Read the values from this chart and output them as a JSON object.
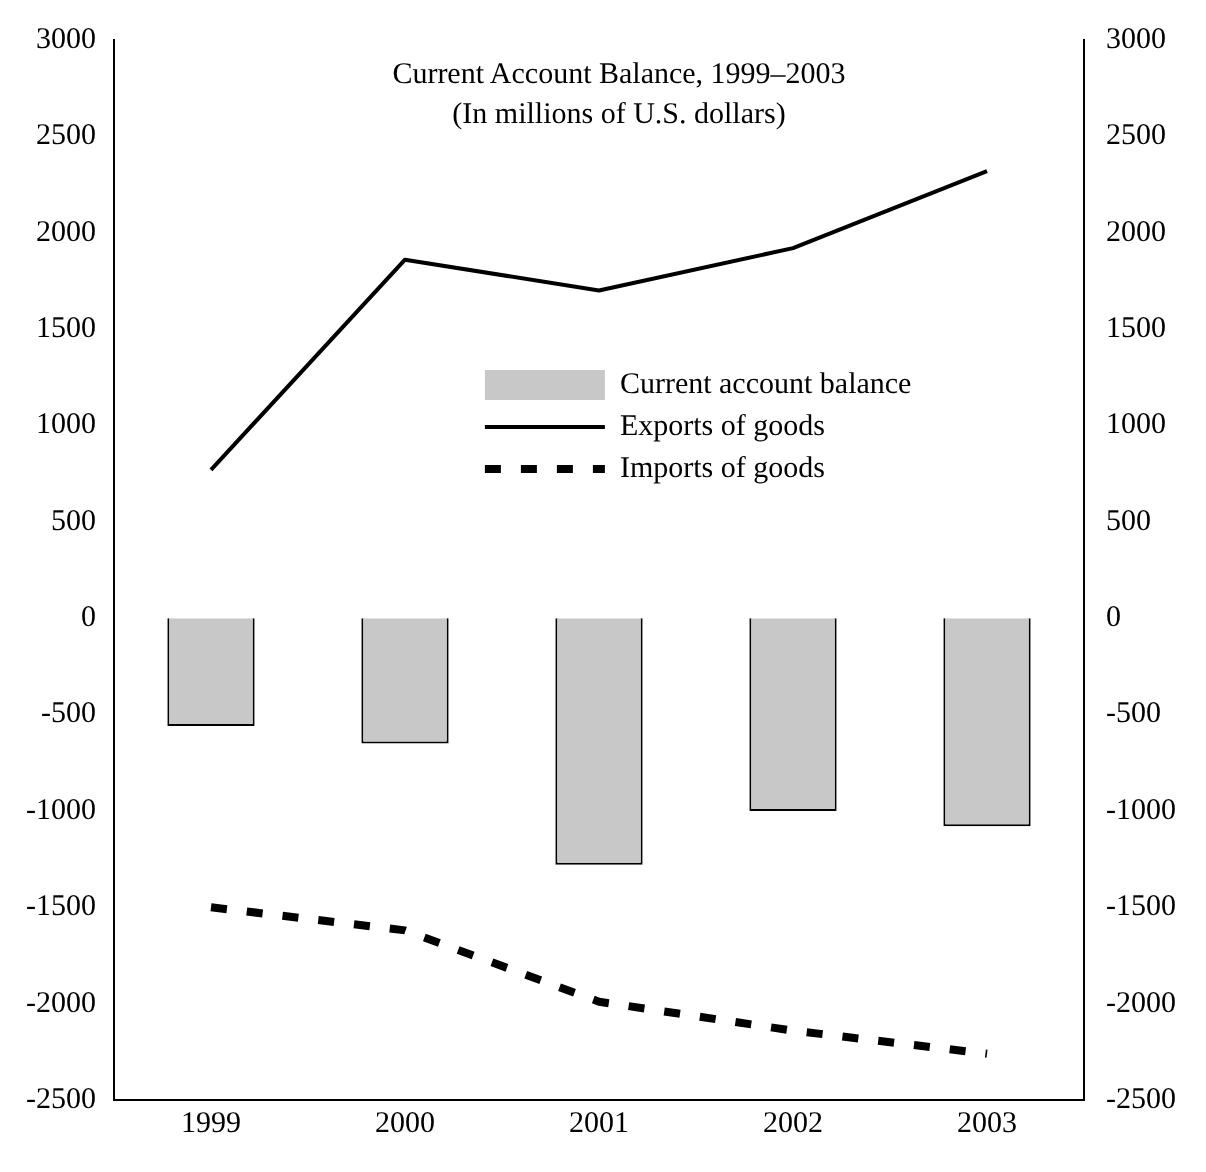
{
  "chart_data": {
    "type": "bar",
    "title": "Current Account Balance, 1999–2003",
    "subtitle": "(In millions of U.S. dollars)",
    "categories": [
      "1999",
      "2000",
      "2001",
      "2002",
      "2003"
    ],
    "series": [
      {
        "name": "Current account balance",
        "color": "#c8c8c8",
        "values": [
          -560,
          -650,
          -1280,
          -1000,
          -1080
        ]
      },
      {
        "name": "Exports of goods",
        "type": "line",
        "color": "#000000",
        "line_style": "solid",
        "values": [
          770,
          1860,
          1700,
          1920,
          2320
        ]
      },
      {
        "name": "Imports of goods",
        "type": "line",
        "color": "#000000",
        "line_style": "dashed",
        "values": [
          -1500,
          -1620,
          -1990,
          -2140,
          -2260
        ]
      }
    ],
    "ylim": [
      -2500,
      3000
    ],
    "yticks": [
      -2500,
      -2000,
      -1500,
      -1000,
      -500,
      0,
      500,
      1000,
      1500,
      2000,
      2500,
      3000
    ],
    "y2lim": [
      -2500,
      3000
    ],
    "y2ticks": [
      -2500,
      -2000,
      -1500,
      -1000,
      -500,
      0,
      500,
      1000,
      1500,
      2000,
      2500,
      3000
    ],
    "grid": false,
    "legend": "top right",
    "marker": "none"
  }
}
